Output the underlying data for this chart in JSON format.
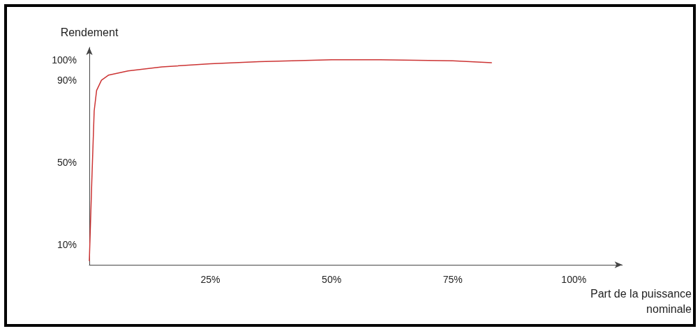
{
  "chart_data": {
    "type": "line",
    "ylabel": "Rendement",
    "xlabel": "Part de la puissance\nnominale",
    "x": [
      0,
      0.5,
      1,
      1.5,
      2.5,
      4,
      8,
      15,
      25,
      35,
      50,
      60,
      75,
      83
    ],
    "series": [
      {
        "color": "#cc3333",
        "values": [
          2,
          40,
          75,
          85,
          90,
          92.5,
          94.5,
          96.5,
          98,
          99,
          100,
          100,
          99.5,
          98.5
        ]
      }
    ],
    "xlim": [
      0,
      110
    ],
    "ylim": [
      0,
      106
    ],
    "xticks": [
      {
        "value": 25,
        "label": "25%"
      },
      {
        "value": 50,
        "label": "50%"
      },
      {
        "value": 75,
        "label": "75%"
      },
      {
        "value": 100,
        "label": "100%"
      }
    ],
    "yticks": [
      {
        "value": 10,
        "label": "10%"
      },
      {
        "value": 50,
        "label": "50%"
      },
      {
        "value": 90,
        "label": "90%"
      },
      {
        "value": 100,
        "label": "100%"
      }
    ],
    "grid": false,
    "marker": "none",
    "line_style": "solid"
  }
}
